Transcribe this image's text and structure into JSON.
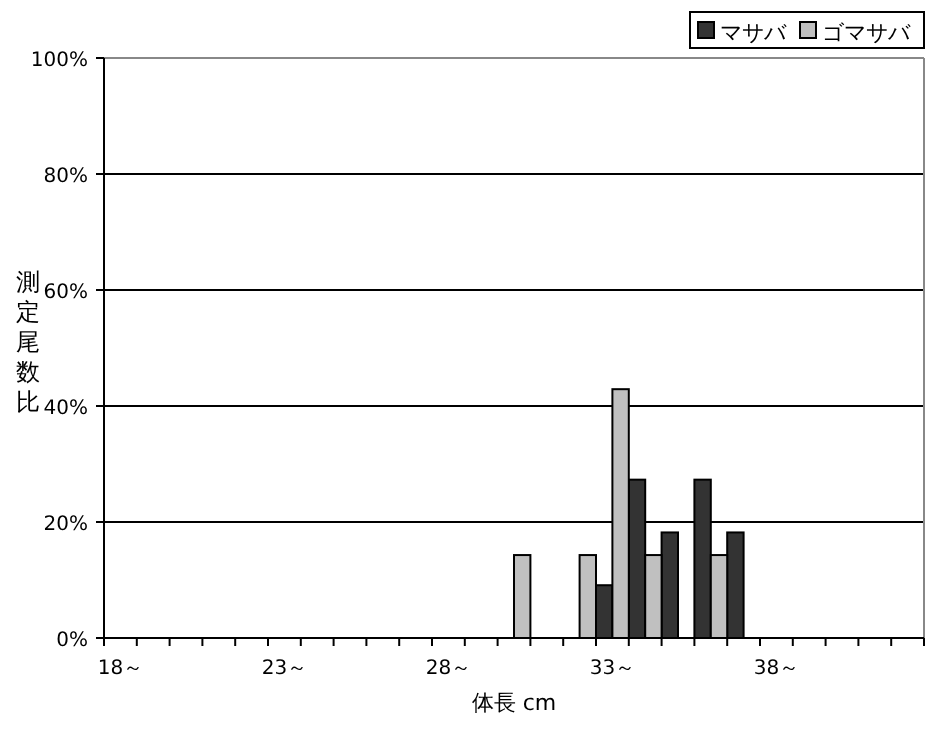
{
  "chart_data": {
    "type": "bar",
    "xlabel": "体長 cm",
    "ylabel": "測定尾数比",
    "categories": [
      "18～",
      null,
      null,
      null,
      null,
      "23～",
      null,
      null,
      null,
      null,
      "28～",
      null,
      null,
      null,
      null,
      "33～",
      null,
      null,
      null,
      null,
      "38～",
      null,
      null,
      null,
      null
    ],
    "series": [
      {
        "name": "マサバ",
        "color": "#333333",
        "values": [
          null,
          null,
          null,
          null,
          null,
          null,
          null,
          null,
          null,
          null,
          null,
          null,
          null,
          null,
          null,
          9.1,
          27.3,
          18.2,
          27.3,
          18.2,
          null,
          null,
          null,
          null,
          null
        ]
      },
      {
        "name": "ゴマサバ",
        "color": "#c0c0c0",
        "values": [
          null,
          null,
          null,
          null,
          null,
          null,
          null,
          null,
          null,
          null,
          null,
          null,
          14.3,
          null,
          14.3,
          42.9,
          14.3,
          null,
          14.3,
          null,
          null,
          null,
          null,
          null,
          null
        ]
      }
    ],
    "ylim": [
      0,
      100
    ],
    "yticks": [
      {
        "value": 0,
        "label": "0%"
      },
      {
        "value": 20,
        "label": "20%"
      },
      {
        "value": 40,
        "label": "40%"
      },
      {
        "value": 60,
        "label": "60%"
      },
      {
        "value": 80,
        "label": "80%"
      },
      {
        "value": 100,
        "label": "100%"
      }
    ],
    "grid": "y",
    "legend": "top right"
  }
}
